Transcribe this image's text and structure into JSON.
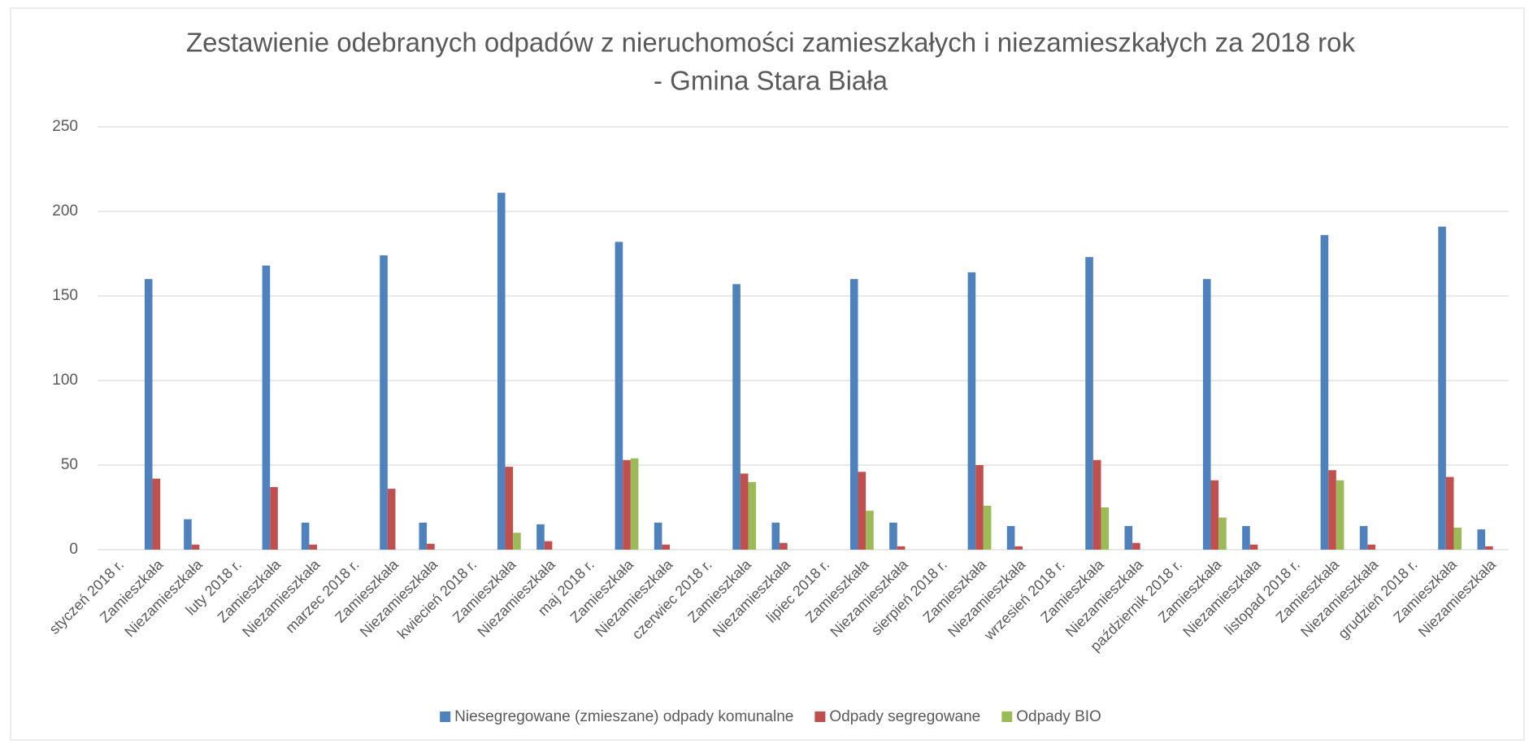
{
  "chart_data": {
    "type": "bar",
    "title": [
      "Zestawienie odebranych odpadów z nieruchomości zamieszkałych i niezamieszkałych za 2018 rok",
      "- Gmina Stara Biała"
    ],
    "categories": [
      "styczeń 2018 r.",
      "Zamieszkała",
      "Niezamieszkała",
      "luty 2018 r.",
      "Zamieszkała",
      "Niezamieszkała",
      "marzec 2018 r.",
      "Zamieszkała",
      "Niezamieszkała",
      "kwiecień 2018 r.",
      "Zamieszkała",
      "Niezamieszkała",
      "maj 2018 r.",
      "Zamieszkała",
      "Niezamieszkała",
      "czerwiec 2018 r.",
      "Zamieszkała",
      "Niezamieszkała",
      "lipiec 2018 r.",
      "Zamieszkała",
      "Niezamieszkała",
      "sierpień 2018 r.",
      "Zamieszkała",
      "Niezamieszkała",
      "wrzesień 2018 r.",
      "Zamieszkała",
      "Niezamieszkała",
      "październik 2018 r.",
      "Zamieszkała",
      "Niezamieszkała",
      "listopad 2018 r.",
      "Zamieszkała",
      "Niezamieszkała",
      "grudzień 2018 r.",
      "Zamieszkała",
      "Niezamieszkała"
    ],
    "series": [
      {
        "name": "Niesegregowane (zmieszane) odpady komunalne",
        "color": "#4f81bd",
        "values": [
          null,
          160,
          18,
          null,
          168,
          16,
          null,
          174,
          16,
          null,
          211,
          15,
          null,
          182,
          16,
          null,
          157,
          16,
          null,
          160,
          16,
          null,
          164,
          14,
          null,
          173,
          14,
          null,
          160,
          14,
          null,
          186,
          14,
          null,
          191,
          12
        ]
      },
      {
        "name": "Odpady segregowane",
        "color": "#c0504d",
        "values": [
          null,
          42,
          3,
          null,
          37,
          3,
          null,
          36,
          3.5,
          null,
          49,
          5,
          null,
          53,
          3,
          null,
          45,
          4,
          null,
          46,
          2,
          null,
          50,
          2,
          null,
          53,
          4,
          null,
          41,
          3,
          null,
          47,
          3,
          null,
          43,
          2
        ]
      },
      {
        "name": "Odpady BIO",
        "color": "#9bbb59",
        "values": [
          null,
          null,
          null,
          null,
          null,
          null,
          null,
          null,
          null,
          null,
          10,
          null,
          null,
          54,
          null,
          null,
          40,
          null,
          null,
          23,
          null,
          null,
          26,
          null,
          null,
          25,
          null,
          null,
          19,
          null,
          null,
          41,
          null,
          null,
          13,
          null
        ]
      }
    ],
    "ylim": [
      0,
      250
    ],
    "yticks": [
      0,
      50,
      100,
      150,
      200,
      250
    ],
    "grid": true,
    "legend": "bottom"
  }
}
